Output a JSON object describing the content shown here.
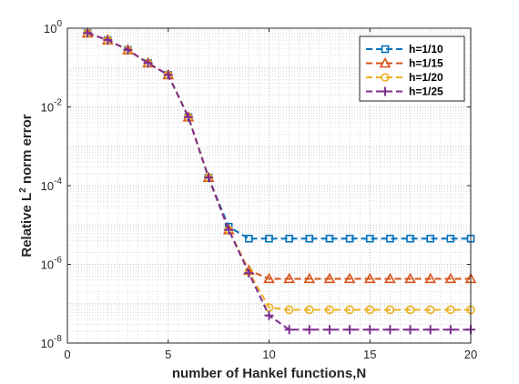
{
  "chart_data": {
    "type": "line",
    "xlabel": "number of Hankel functions,N",
    "ylabel_main": "Relative L",
    "ylabel_sup": "2",
    "ylabel_rest": " norm error",
    "x_ticks": [
      0,
      5,
      10,
      15,
      20
    ],
    "xlim": [
      0,
      20
    ],
    "y_scale": "log",
    "ylim": [
      1e-08,
      1
    ],
    "y_ticks": [
      {
        "base": "10",
        "exp": "0",
        "value": 1
      },
      {
        "base": "10",
        "exp": "-2",
        "value": 0.01
      },
      {
        "base": "10",
        "exp": "-4",
        "value": 0.0001
      },
      {
        "base": "10",
        "exp": "-6",
        "value": 1e-06
      },
      {
        "base": "10",
        "exp": "-8",
        "value": 1e-08
      }
    ],
    "grid": "on (major and minor, dotted)",
    "legend_position": "top-right",
    "series": [
      {
        "name": "h=1/10",
        "color": "#0072BD",
        "marker": "square",
        "x": [
          1,
          2,
          3,
          4,
          5,
          6,
          7,
          8,
          9,
          10,
          11,
          12,
          13,
          14,
          15,
          16,
          17,
          18,
          19,
          20
        ],
        "y": [
          0.75,
          0.5,
          0.28,
          0.13,
          0.065,
          0.0055,
          0.00016,
          9e-06,
          4.5e-06,
          4.5e-06,
          4.5e-06,
          4.5e-06,
          4.5e-06,
          4.5e-06,
          4.5e-06,
          4.5e-06,
          4.5e-06,
          4.5e-06,
          4.5e-06,
          4.5e-06
        ]
      },
      {
        "name": "h=1/15",
        "color": "#D95319",
        "marker": "triangle",
        "x": [
          1,
          2,
          3,
          4,
          5,
          6,
          7,
          8,
          9,
          10,
          11,
          12,
          13,
          14,
          15,
          16,
          17,
          18,
          19,
          20
        ],
        "y": [
          0.75,
          0.5,
          0.28,
          0.13,
          0.065,
          0.0055,
          0.00016,
          7.5e-06,
          7e-07,
          4.3e-07,
          4.3e-07,
          4.3e-07,
          4.3e-07,
          4.3e-07,
          4.3e-07,
          4.3e-07,
          4.3e-07,
          4.3e-07,
          4.3e-07,
          4.3e-07
        ]
      },
      {
        "name": "h=1/20",
        "color": "#EDB120",
        "marker": "circle",
        "x": [
          1,
          2,
          3,
          4,
          5,
          6,
          7,
          8,
          9,
          10,
          11,
          12,
          13,
          14,
          15,
          16,
          17,
          18,
          19,
          20
        ],
        "y": [
          0.75,
          0.5,
          0.28,
          0.13,
          0.065,
          0.0055,
          0.00016,
          7.5e-06,
          6.5e-07,
          8e-08,
          7e-08,
          7e-08,
          7e-08,
          7e-08,
          7e-08,
          7e-08,
          7e-08,
          7e-08,
          7e-08,
          7e-08
        ]
      },
      {
        "name": "h=1/25",
        "color": "#7E2F8E",
        "marker": "plus",
        "x": [
          1,
          2,
          3,
          4,
          5,
          6,
          7,
          8,
          9,
          10,
          11,
          12,
          13,
          14,
          15,
          16,
          17,
          18,
          19,
          20
        ],
        "y": [
          0.75,
          0.5,
          0.28,
          0.13,
          0.065,
          0.0055,
          0.00016,
          7.5e-06,
          6e-07,
          5e-08,
          2.2e-08,
          2.2e-08,
          2.2e-08,
          2.2e-08,
          2.2e-08,
          2.2e-08,
          2.2e-08,
          2.2e-08,
          2.2e-08,
          2.2e-08
        ]
      }
    ]
  }
}
